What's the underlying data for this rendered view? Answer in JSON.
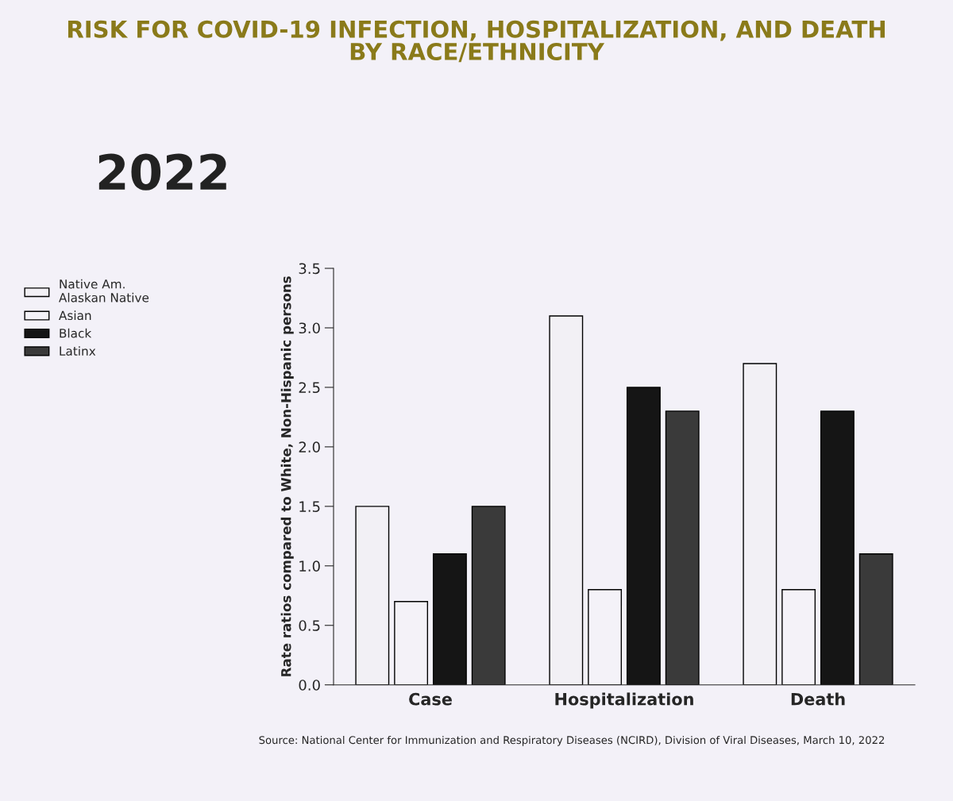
{
  "chart_data": {
    "type": "bar",
    "title": "RISK FOR COVID-19 INFECTION, HOSPITALIZATION, AND DEATH\nBY RACE/ETHNICITY",
    "subtitle": "2022",
    "ylabel": "Rate ratios compared to White, Non-Hispanic persons",
    "categories": [
      "Case",
      "Hospitalization",
      "Death"
    ],
    "series": [
      {
        "name": "Native Am.\nAlaskan Native",
        "color": "#f2f0f5",
        "values": [
          1.5,
          3.1,
          2.7
        ]
      },
      {
        "name": "Asian",
        "color": "#f4f2f8",
        "values": [
          0.7,
          0.8,
          0.8
        ]
      },
      {
        "name": "Black",
        "color": "#151515",
        "values": [
          1.1,
          2.5,
          2.3
        ]
      },
      {
        "name": "Latinx",
        "color": "#3a3a3a",
        "values": [
          1.5,
          2.3,
          1.1
        ]
      }
    ],
    "ylim": [
      0,
      3.5
    ],
    "yticks": [
      {
        "value": 0,
        "label": "0.0"
      },
      {
        "value": 0.5,
        "label": "0.5"
      },
      {
        "value": 1,
        "label": "1.0"
      },
      {
        "value": 1.5,
        "label": "1.5"
      },
      {
        "value": 2,
        "label": "2.0"
      },
      {
        "value": 2.5,
        "label": "2.5"
      },
      {
        "value": 3,
        "label": "3.0"
      },
      {
        "value": 3.5,
        "label": "3.5"
      }
    ],
    "grid": false,
    "legend": "left",
    "annotations": [
      "Source: National Center for Immunization and Respiratory Diseases (NCIRD), Division of Viral Diseases, March 10, 2022"
    ]
  }
}
